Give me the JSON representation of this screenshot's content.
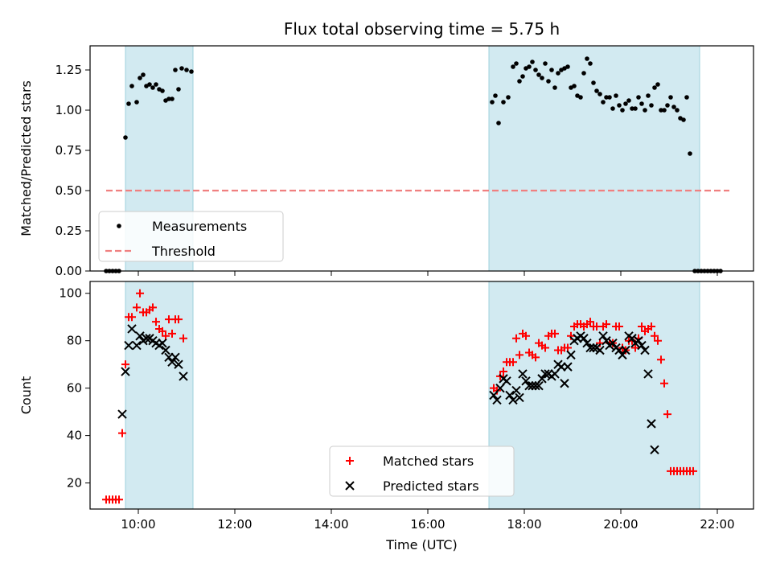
{
  "chart_data": [
    {
      "type": "scatter",
      "title": "Flux total observing time = 5.75 h",
      "xlabel": "",
      "ylabel": "Matched/Predicted stars",
      "xlim": [
        "09:00",
        "22:45"
      ],
      "ylim": [
        0,
        1.4
      ],
      "yticks": [
        "0.00",
        "0.25",
        "0.50",
        "0.75",
        "1.00",
        "1.25"
      ],
      "xticks": [
        "10:00",
        "12:00",
        "14:00",
        "16:00",
        "18:00",
        "20:00",
        "22:00"
      ],
      "xtick_labels_visible": false,
      "shaded_intervals": [
        [
          "09:44",
          "11:08"
        ],
        [
          "17:16",
          "21:38"
        ]
      ],
      "legend": {
        "position": "lower-left",
        "entries": [
          "Measurements",
          "Threshold"
        ]
      },
      "threshold": {
        "name": "Threshold",
        "value": 0.5,
        "x_range": [
          "09:20",
          "22:15"
        ],
        "color": "#f08080",
        "style": "dashed"
      },
      "series": [
        {
          "name": "Measurements",
          "marker": "dot",
          "color": "#000000",
          "points": [
            [
              "09:20",
              0
            ],
            [
              "09:24",
              0
            ],
            [
              "09:28",
              0
            ],
            [
              "09:32",
              0
            ],
            [
              "09:36",
              0
            ],
            [
              "09:44",
              0.83
            ],
            [
              "09:48",
              1.04
            ],
            [
              "09:52",
              1.15
            ],
            [
              "09:58",
              1.05
            ],
            [
              "10:02",
              1.2
            ],
            [
              "10:06",
              1.22
            ],
            [
              "10:10",
              1.15
            ],
            [
              "10:14",
              1.16
            ],
            [
              "10:18",
              1.14
            ],
            [
              "10:22",
              1.16
            ],
            [
              "10:26",
              1.13
            ],
            [
              "10:30",
              1.12
            ],
            [
              "10:34",
              1.06
            ],
            [
              "10:38",
              1.07
            ],
            [
              "10:42",
              1.07
            ],
            [
              "10:46",
              1.25
            ],
            [
              "10:50",
              1.13
            ],
            [
              "10:54",
              1.26
            ],
            [
              "11:00",
              1.25
            ],
            [
              "11:06",
              1.24
            ],
            [
              "17:20",
              1.05
            ],
            [
              "17:24",
              1.09
            ],
            [
              "17:28",
              0.92
            ],
            [
              "17:34",
              1.05
            ],
            [
              "17:40",
              1.08
            ],
            [
              "17:46",
              1.27
            ],
            [
              "17:50",
              1.29
            ],
            [
              "17:54",
              1.18
            ],
            [
              "17:58",
              1.21
            ],
            [
              "18:02",
              1.26
            ],
            [
              "18:06",
              1.27
            ],
            [
              "18:10",
              1.3
            ],
            [
              "18:14",
              1.25
            ],
            [
              "18:18",
              1.22
            ],
            [
              "18:22",
              1.2
            ],
            [
              "18:26",
              1.29
            ],
            [
              "18:30",
              1.18
            ],
            [
              "18:34",
              1.25
            ],
            [
              "18:38",
              1.14
            ],
            [
              "18:42",
              1.23
            ],
            [
              "18:46",
              1.25
            ],
            [
              "18:50",
              1.26
            ],
            [
              "18:54",
              1.27
            ],
            [
              "18:58",
              1.14
            ],
            [
              "19:02",
              1.15
            ],
            [
              "19:06",
              1.09
            ],
            [
              "19:10",
              1.08
            ],
            [
              "19:14",
              1.23
            ],
            [
              "19:18",
              1.32
            ],
            [
              "19:22",
              1.29
            ],
            [
              "19:26",
              1.17
            ],
            [
              "19:30",
              1.12
            ],
            [
              "19:34",
              1.1
            ],
            [
              "19:38",
              1.05
            ],
            [
              "19:42",
              1.08
            ],
            [
              "19:46",
              1.08
            ],
            [
              "19:50",
              1.01
            ],
            [
              "19:54",
              1.09
            ],
            [
              "19:58",
              1.03
            ],
            [
              "20:02",
              1.0
            ],
            [
              "20:06",
              1.04
            ],
            [
              "20:10",
              1.06
            ],
            [
              "20:14",
              1.01
            ],
            [
              "20:18",
              1.01
            ],
            [
              "20:22",
              1.08
            ],
            [
              "20:26",
              1.04
            ],
            [
              "20:30",
              1.0
            ],
            [
              "20:34",
              1.09
            ],
            [
              "20:38",
              1.03
            ],
            [
              "20:42",
              1.14
            ],
            [
              "20:46",
              1.16
            ],
            [
              "20:50",
              1.0
            ],
            [
              "20:54",
              1.0
            ],
            [
              "20:58",
              1.03
            ],
            [
              "21:02",
              1.08
            ],
            [
              "21:06",
              1.02
            ],
            [
              "21:10",
              1.0
            ],
            [
              "21:14",
              0.95
            ],
            [
              "21:18",
              0.94
            ],
            [
              "21:22",
              1.08
            ],
            [
              "21:26",
              0.73
            ],
            [
              "21:32",
              0
            ],
            [
              "21:36",
              0
            ],
            [
              "21:40",
              0
            ],
            [
              "21:44",
              0
            ],
            [
              "21:48",
              0
            ],
            [
              "21:52",
              0
            ],
            [
              "21:56",
              0
            ],
            [
              "22:00",
              0
            ],
            [
              "22:04",
              0
            ]
          ]
        }
      ]
    },
    {
      "type": "scatter",
      "title": "",
      "xlabel": "Time (UTC)",
      "ylabel": "Count",
      "xlim": [
        "09:00",
        "22:45"
      ],
      "ylim": [
        9,
        105
      ],
      "yticks": [
        "20",
        "40",
        "60",
        "80",
        "100"
      ],
      "xticks": [
        "10:00",
        "12:00",
        "14:00",
        "16:00",
        "18:00",
        "20:00",
        "22:00"
      ],
      "shaded_intervals": [
        [
          "09:44",
          "11:08"
        ],
        [
          "17:16",
          "21:38"
        ]
      ],
      "legend": {
        "position": "lower-center",
        "entries": [
          "Matched stars",
          "Predicted stars"
        ]
      },
      "series": [
        {
          "name": "Matched stars",
          "marker": "plus",
          "color": "#ff0000",
          "points": [
            [
              "09:20",
              13
            ],
            [
              "09:24",
              13
            ],
            [
              "09:28",
              13
            ],
            [
              "09:32",
              13
            ],
            [
              "09:36",
              13
            ],
            [
              "09:40",
              41
            ],
            [
              "09:44",
              70
            ],
            [
              "09:48",
              90
            ],
            [
              "09:52",
              90
            ],
            [
              "09:58",
              94
            ],
            [
              "10:02",
              100
            ],
            [
              "10:06",
              92
            ],
            [
              "10:10",
              92
            ],
            [
              "10:14",
              93
            ],
            [
              "10:18",
              94
            ],
            [
              "10:22",
              88
            ],
            [
              "10:26",
              85
            ],
            [
              "10:30",
              84
            ],
            [
              "10:34",
              82
            ],
            [
              "10:38",
              89
            ],
            [
              "10:42",
              83
            ],
            [
              "10:46",
              89
            ],
            [
              "10:50",
              89
            ],
            [
              "10:56",
              81
            ],
            [
              "17:22",
              60
            ],
            [
              "17:26",
              59
            ],
            [
              "17:30",
              65
            ],
            [
              "17:34",
              67
            ],
            [
              "17:38",
              71
            ],
            [
              "17:42",
              71
            ],
            [
              "17:46",
              71
            ],
            [
              "17:50",
              81
            ],
            [
              "17:54",
              74
            ],
            [
              "17:58",
              83
            ],
            [
              "18:02",
              82
            ],
            [
              "18:06",
              75
            ],
            [
              "18:10",
              74
            ],
            [
              "18:14",
              73
            ],
            [
              "18:18",
              79
            ],
            [
              "18:22",
              78
            ],
            [
              "18:26",
              77
            ],
            [
              "18:30",
              82
            ],
            [
              "18:34",
              83
            ],
            [
              "18:38",
              83
            ],
            [
              "18:42",
              76
            ],
            [
              "18:46",
              76
            ],
            [
              "18:50",
              77
            ],
            [
              "18:54",
              77
            ],
            [
              "18:58",
              82
            ],
            [
              "19:02",
              86
            ],
            [
              "19:06",
              87
            ],
            [
              "19:10",
              87
            ],
            [
              "19:14",
              86
            ],
            [
              "19:18",
              87
            ],
            [
              "19:22",
              88
            ],
            [
              "19:26",
              86
            ],
            [
              "19:30",
              86
            ],
            [
              "19:34",
              79
            ],
            [
              "19:38",
              86
            ],
            [
              "19:42",
              87
            ],
            [
              "19:46",
              79
            ],
            [
              "19:50",
              79
            ],
            [
              "19:54",
              86
            ],
            [
              "19:58",
              86
            ],
            [
              "20:02",
              77
            ],
            [
              "20:06",
              76
            ],
            [
              "20:10",
              80
            ],
            [
              "20:14",
              80
            ],
            [
              "20:18",
              77
            ],
            [
              "20:22",
              81
            ],
            [
              "20:26",
              86
            ],
            [
              "20:30",
              84
            ],
            [
              "20:34",
              85
            ],
            [
              "20:38",
              86
            ],
            [
              "20:42",
              82
            ],
            [
              "20:46",
              80
            ],
            [
              "20:50",
              72
            ],
            [
              "20:54",
              62
            ],
            [
              "20:58",
              49
            ],
            [
              "21:02",
              25
            ],
            [
              "21:06",
              25
            ],
            [
              "21:10",
              25
            ],
            [
              "21:14",
              25
            ],
            [
              "21:18",
              25
            ],
            [
              "21:22",
              25
            ],
            [
              "21:26",
              25
            ],
            [
              "21:30",
              25
            ]
          ]
        },
        {
          "name": "Predicted stars",
          "marker": "cross",
          "color": "#000000",
          "points": [
            [
              "09:40",
              49
            ],
            [
              "09:44",
              67
            ],
            [
              "09:48",
              78
            ],
            [
              "09:52",
              85
            ],
            [
              "09:58",
              78
            ],
            [
              "10:02",
              82
            ],
            [
              "10:06",
              80
            ],
            [
              "10:10",
              81
            ],
            [
              "10:14",
              81
            ],
            [
              "10:18",
              80
            ],
            [
              "10:22",
              79
            ],
            [
              "10:26",
              78
            ],
            [
              "10:30",
              79
            ],
            [
              "10:34",
              76
            ],
            [
              "10:38",
              73
            ],
            [
              "10:42",
              71
            ],
            [
              "10:46",
              73
            ],
            [
              "10:50",
              70
            ],
            [
              "10:56",
              65
            ],
            [
              "17:22",
              57
            ],
            [
              "17:26",
              55
            ],
            [
              "17:30",
              60
            ],
            [
              "17:34",
              64
            ],
            [
              "17:38",
              63
            ],
            [
              "17:42",
              57
            ],
            [
              "17:46",
              55
            ],
            [
              "17:50",
              59
            ],
            [
              "17:54",
              56
            ],
            [
              "17:58",
              66
            ],
            [
              "18:02",
              63
            ],
            [
              "18:06",
              61
            ],
            [
              "18:10",
              61
            ],
            [
              "18:14",
              61
            ],
            [
              "18:18",
              61
            ],
            [
              "18:22",
              64
            ],
            [
              "18:26",
              66
            ],
            [
              "18:30",
              66
            ],
            [
              "18:34",
              65
            ],
            [
              "18:38",
              66
            ],
            [
              "18:42",
              70
            ],
            [
              "18:46",
              69
            ],
            [
              "18:50",
              62
            ],
            [
              "18:54",
              69
            ],
            [
              "18:58",
              74
            ],
            [
              "19:02",
              80
            ],
            [
              "19:06",
              81
            ],
            [
              "19:10",
              82
            ],
            [
              "19:14",
              81
            ],
            [
              "19:18",
              79
            ],
            [
              "19:22",
              77
            ],
            [
              "19:26",
              77
            ],
            [
              "19:30",
              77
            ],
            [
              "19:34",
              76
            ],
            [
              "19:38",
              82
            ],
            [
              "19:42",
              80
            ],
            [
              "19:46",
              78
            ],
            [
              "19:50",
              79
            ],
            [
              "19:54",
              77
            ],
            [
              "19:58",
              76
            ],
            [
              "20:02",
              74
            ],
            [
              "20:06",
              76
            ],
            [
              "20:10",
              82
            ],
            [
              "20:14",
              81
            ],
            [
              "20:18",
              79
            ],
            [
              "20:22",
              80
            ],
            [
              "20:26",
              78
            ],
            [
              "20:30",
              76
            ],
            [
              "20:34",
              66
            ],
            [
              "20:38",
              45
            ],
            [
              "20:42",
              34
            ]
          ]
        }
      ]
    }
  ]
}
